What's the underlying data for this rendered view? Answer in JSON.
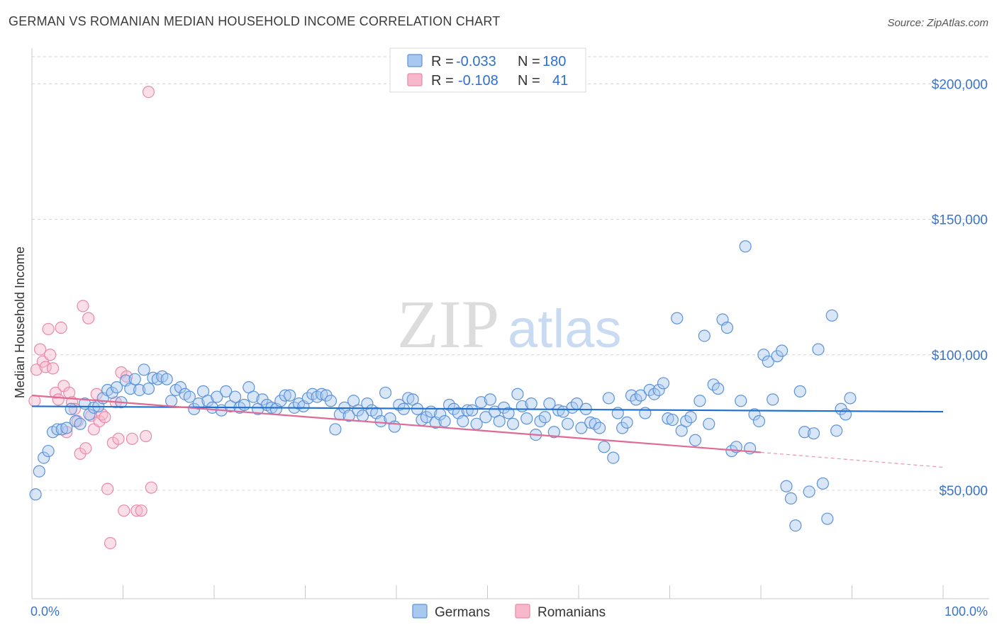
{
  "title": "GERMAN VS ROMANIAN MEDIAN HOUSEHOLD INCOME CORRELATION CHART",
  "source": "Source: ZipAtlas.com",
  "watermark": {
    "zip": "ZIP",
    "atlas": "atlas"
  },
  "colors": {
    "germans_fill": "#a8c8f0",
    "germans_stroke": "#5b93d8",
    "germans_line": "#1f6fcf",
    "romanians_fill": "#f7b8cc",
    "romanians_stroke": "#e88aa8",
    "romanians_line": "#e06a93",
    "label_blue": "#3a74c8"
  },
  "legend_top": {
    "rows": [
      {
        "r_label": "R =",
        "r_value": "-0.033",
        "n_label": "N =",
        "n_value": "180"
      },
      {
        "r_label": "R =",
        "r_value": "-0.108",
        "n_label": "N =",
        "n_value": "41"
      }
    ]
  },
  "legend_bottom": [
    "Germans",
    "Romanians"
  ],
  "chart_data": {
    "type": "scatter",
    "ylabel": "Median Household Income",
    "xlim": [
      0,
      100
    ],
    "ylim": [
      10000,
      210000
    ],
    "y_ticks": [
      {
        "value": 50000,
        "label": "$50,000"
      },
      {
        "value": 100000,
        "label": "$100,000"
      },
      {
        "value": 150000,
        "label": "$150,000"
      },
      {
        "value": 200000,
        "label": "$200,000"
      }
    ],
    "x_tick_labels": [
      {
        "value": 0,
        "label": "0.0%"
      },
      {
        "value": 100,
        "label": "100.0%"
      }
    ],
    "grid": true,
    "series": [
      {
        "name": "Germans",
        "r": -0.033,
        "n": 180,
        "trend": {
          "x": [
            0,
            100
          ],
          "y": [
            81000,
            79000
          ]
        },
        "points": [
          [
            0.4,
            48500
          ],
          [
            0.8,
            57000
          ],
          [
            1.3,
            62000
          ],
          [
            1.8,
            64500
          ],
          [
            2.3,
            71500
          ],
          [
            2.8,
            72500
          ],
          [
            3.3,
            72500
          ],
          [
            3.8,
            73000
          ],
          [
            4.3,
            80000
          ],
          [
            4.8,
            75500
          ],
          [
            5.3,
            74500
          ],
          [
            5.8,
            82000
          ],
          [
            6.3,
            78000
          ],
          [
            6.8,
            80500
          ],
          [
            7.3,
            81000
          ],
          [
            7.8,
            84000
          ],
          [
            8.3,
            87000
          ],
          [
            8.8,
            86000
          ],
          [
            9.3,
            88000
          ],
          [
            9.8,
            82500
          ],
          [
            10.3,
            90500
          ],
          [
            10.8,
            87500
          ],
          [
            11.3,
            91000
          ],
          [
            11.8,
            87000
          ],
          [
            12.3,
            94500
          ],
          [
            12.8,
            87500
          ],
          [
            13.3,
            91500
          ],
          [
            13.8,
            91000
          ],
          [
            14.3,
            92000
          ],
          [
            14.8,
            91000
          ],
          [
            15.3,
            83000
          ],
          [
            15.8,
            87000
          ],
          [
            16.3,
            88000
          ],
          [
            16.8,
            85500
          ],
          [
            17.3,
            84500
          ],
          [
            17.8,
            80000
          ],
          [
            18.3,
            82000
          ],
          [
            18.8,
            86500
          ],
          [
            19.3,
            83000
          ],
          [
            19.8,
            80500
          ],
          [
            20.3,
            84500
          ],
          [
            20.8,
            79500
          ],
          [
            21.3,
            86500
          ],
          [
            21.8,
            81000
          ],
          [
            22.3,
            84500
          ],
          [
            22.8,
            80500
          ],
          [
            23.3,
            81500
          ],
          [
            23.8,
            88000
          ],
          [
            24.3,
            84500
          ],
          [
            24.8,
            80000
          ],
          [
            25.3,
            83500
          ],
          [
            25.8,
            81500
          ],
          [
            26.3,
            80500
          ],
          [
            26.8,
            80000
          ],
          [
            27.3,
            83000
          ],
          [
            27.8,
            85000
          ],
          [
            28.3,
            85000
          ],
          [
            28.8,
            80500
          ],
          [
            29.3,
            82000
          ],
          [
            29.8,
            81000
          ],
          [
            30.3,
            84000
          ],
          [
            30.8,
            85500
          ],
          [
            31.3,
            84500
          ],
          [
            31.8,
            85500
          ],
          [
            32.3,
            85000
          ],
          [
            32.8,
            83000
          ],
          [
            33.3,
            72500
          ],
          [
            33.8,
            78000
          ],
          [
            34.3,
            80500
          ],
          [
            34.8,
            77500
          ],
          [
            35.3,
            83000
          ],
          [
            35.8,
            79500
          ],
          [
            36.3,
            77500
          ],
          [
            36.8,
            82000
          ],
          [
            37.3,
            79500
          ],
          [
            37.8,
            78500
          ],
          [
            38.3,
            75500
          ],
          [
            38.8,
            86000
          ],
          [
            39.3,
            76500
          ],
          [
            39.8,
            73500
          ],
          [
            40.3,
            81500
          ],
          [
            40.8,
            80000
          ],
          [
            41.3,
            84000
          ],
          [
            41.8,
            83500
          ],
          [
            42.3,
            80000
          ],
          [
            42.8,
            76000
          ],
          [
            43.3,
            77000
          ],
          [
            43.8,
            79000
          ],
          [
            44.3,
            75000
          ],
          [
            44.8,
            78000
          ],
          [
            45.3,
            75500
          ],
          [
            45.8,
            81500
          ],
          [
            46.3,
            80000
          ],
          [
            46.8,
            78500
          ],
          [
            47.3,
            75500
          ],
          [
            47.8,
            79500
          ],
          [
            48.3,
            79500
          ],
          [
            48.8,
            74500
          ],
          [
            49.3,
            82500
          ],
          [
            49.8,
            77000
          ],
          [
            50.3,
            83500
          ],
          [
            50.8,
            79000
          ],
          [
            51.3,
            75500
          ],
          [
            51.8,
            80500
          ],
          [
            52.3,
            78500
          ],
          [
            52.8,
            74500
          ],
          [
            53.3,
            85500
          ],
          [
            53.8,
            81000
          ],
          [
            54.3,
            76500
          ],
          [
            54.8,
            82000
          ],
          [
            55.3,
            70500
          ],
          [
            55.8,
            75500
          ],
          [
            56.3,
            77000
          ],
          [
            56.8,
            82000
          ],
          [
            57.3,
            71500
          ],
          [
            57.8,
            79500
          ],
          [
            58.3,
            79000
          ],
          [
            58.8,
            74500
          ],
          [
            59.3,
            80500
          ],
          [
            59.8,
            82000
          ],
          [
            60.3,
            73000
          ],
          [
            60.8,
            80000
          ],
          [
            61.3,
            75000
          ],
          [
            61.8,
            74500
          ],
          [
            62.3,
            73000
          ],
          [
            62.8,
            66000
          ],
          [
            63.3,
            84000
          ],
          [
            63.8,
            62000
          ],
          [
            64.3,
            78500
          ],
          [
            64.8,
            73000
          ],
          [
            65.3,
            75000
          ],
          [
            65.8,
            85000
          ],
          [
            66.3,
            83500
          ],
          [
            66.8,
            85000
          ],
          [
            67.3,
            78500
          ],
          [
            67.8,
            87000
          ],
          [
            68.3,
            85500
          ],
          [
            68.8,
            87000
          ],
          [
            69.3,
            89500
          ],
          [
            69.8,
            76500
          ],
          [
            70.3,
            76000
          ],
          [
            70.8,
            113500
          ],
          [
            71.3,
            72000
          ],
          [
            71.8,
            75500
          ],
          [
            72.3,
            77000
          ],
          [
            72.8,
            68500
          ],
          [
            73.3,
            83000
          ],
          [
            73.8,
            107000
          ],
          [
            74.3,
            74500
          ],
          [
            74.8,
            89000
          ],
          [
            75.3,
            87500
          ],
          [
            75.8,
            113000
          ],
          [
            76.3,
            110000
          ],
          [
            76.8,
            64500
          ],
          [
            77.3,
            66000
          ],
          [
            77.8,
            83000
          ],
          [
            78.3,
            140000
          ],
          [
            78.8,
            65500
          ],
          [
            79.3,
            78000
          ],
          [
            79.8,
            75500
          ],
          [
            80.3,
            100000
          ],
          [
            80.8,
            97500
          ],
          [
            81.3,
            83500
          ],
          [
            81.8,
            99500
          ],
          [
            82.3,
            101500
          ],
          [
            82.8,
            51500
          ],
          [
            83.3,
            47000
          ],
          [
            83.8,
            37000
          ],
          [
            84.3,
            86500
          ],
          [
            84.8,
            71500
          ],
          [
            85.3,
            49500
          ],
          [
            85.8,
            71000
          ],
          [
            86.3,
            102000
          ],
          [
            86.8,
            52500
          ],
          [
            87.3,
            39500
          ],
          [
            87.8,
            114500
          ],
          [
            88.3,
            72000
          ],
          [
            88.8,
            80000
          ],
          [
            89.3,
            78000
          ],
          [
            89.8,
            84000
          ]
        ]
      },
      {
        "name": "Romanians",
        "r": -0.108,
        "n": 41,
        "trend": {
          "x": [
            0,
            80
          ],
          "y": [
            85000,
            64000
          ]
        },
        "trend_dashed": {
          "x": [
            80,
            100
          ],
          "y": [
            64000,
            58500
          ]
        },
        "points": [
          [
            0.3,
            83000
          ],
          [
            0.5,
            94500
          ],
          [
            0.9,
            102000
          ],
          [
            1.2,
            97500
          ],
          [
            1.5,
            95500
          ],
          [
            1.8,
            109500
          ],
          [
            2.0,
            100000
          ],
          [
            2.3,
            95000
          ],
          [
            2.6,
            86000
          ],
          [
            2.9,
            83500
          ],
          [
            3.2,
            110000
          ],
          [
            3.5,
            88500
          ],
          [
            3.8,
            71500
          ],
          [
            4.1,
            86000
          ],
          [
            4.4,
            82500
          ],
          [
            4.7,
            80000
          ],
          [
            5.0,
            75500
          ],
          [
            5.3,
            63500
          ],
          [
            5.6,
            118000
          ],
          [
            5.9,
            65500
          ],
          [
            6.2,
            113500
          ],
          [
            6.5,
            77500
          ],
          [
            6.8,
            72500
          ],
          [
            7.1,
            85500
          ],
          [
            7.4,
            75500
          ],
          [
            7.7,
            78000
          ],
          [
            8.0,
            77000
          ],
          [
            8.3,
            50500
          ],
          [
            8.6,
            30500
          ],
          [
            8.9,
            67500
          ],
          [
            9.2,
            82500
          ],
          [
            9.5,
            69000
          ],
          [
            9.8,
            93500
          ],
          [
            10.1,
            42500
          ],
          [
            10.4,
            92000
          ],
          [
            11.0,
            69000
          ],
          [
            11.5,
            42500
          ],
          [
            12.0,
            42500
          ],
          [
            12.5,
            70000
          ],
          [
            12.8,
            197000
          ],
          [
            13.1,
            51000
          ]
        ]
      }
    ]
  }
}
